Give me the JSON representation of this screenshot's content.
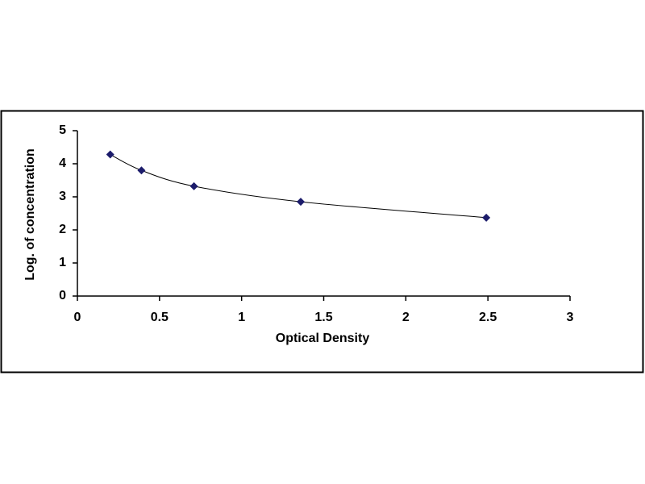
{
  "chart_data": {
    "type": "scatter",
    "x_label": "Optical Density",
    "y_label": "Log. of concentration",
    "x": [
      0.2,
      0.39,
      0.71,
      1.36,
      2.49
    ],
    "values": [
      4.28,
      3.8,
      3.32,
      2.85,
      2.37
    ],
    "color": "#1c1c6b",
    "line": "smooth",
    "marker": "diamond",
    "xlim": [
      0,
      3
    ],
    "xticks": [
      0,
      0.5,
      1,
      1.5,
      2,
      2.5,
      3
    ],
    "ylim": [
      0,
      5
    ],
    "yticks": [
      0,
      1,
      2,
      3,
      4,
      5
    ],
    "grid": false
  }
}
